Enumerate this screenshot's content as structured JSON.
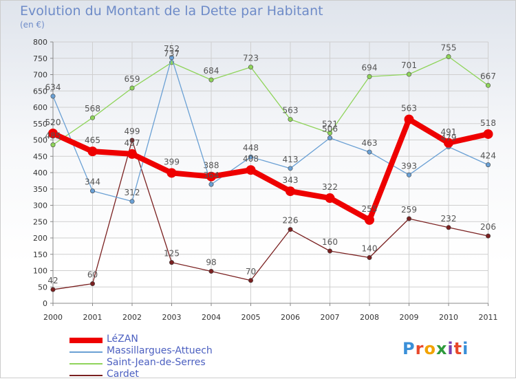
{
  "title": "Evolution du Montant de la Dette par Habitant",
  "unit": "(en €)",
  "logo": {
    "text": "Proxiti",
    "colors": [
      "#3a8fd8",
      "#e8482b",
      "#f2a200",
      "#2e9a3c",
      "#7a3fb0",
      "#e8482b",
      "#3a8fd8"
    ]
  },
  "chart_data": {
    "type": "line",
    "title": "Evolution du Montant de la Dette par Habitant",
    "ylabel": "(en €)",
    "xlabel": "",
    "categories": [
      "2000",
      "2001",
      "2002",
      "2003",
      "2004",
      "2005",
      "2006",
      "2007",
      "2008",
      "2009",
      "2010",
      "2011"
    ],
    "ylim": [
      0,
      800
    ],
    "yticks": [
      0,
      50,
      100,
      150,
      200,
      250,
      300,
      350,
      400,
      450,
      500,
      550,
      600,
      650,
      700,
      750,
      800
    ],
    "grid": true,
    "legend": "bottom-left",
    "series": [
      {
        "name": "Cardet",
        "color": "#7a2020",
        "values": [
          42,
          60,
          499,
          125,
          98,
          70,
          226,
          160,
          140,
          259,
          232,
          206
        ]
      },
      {
        "name": "Saint-Jean-de-Serres",
        "color": "#8fd45a",
        "values": [
          485,
          568,
          659,
          737,
          684,
          723,
          563,
          521,
          694,
          701,
          755,
          667
        ]
      },
      {
        "name": "Massillargues-Attuech",
        "color": "#6aa0d4",
        "values": [
          634,
          344,
          312,
          752,
          364,
          448,
          413,
          506,
          463,
          393,
          479,
          424
        ]
      },
      {
        "name": "LéZAN",
        "color": "#ee0000",
        "values": [
          520,
          465,
          457,
          399,
          388,
          408,
          343,
          322,
          255,
          563,
          491,
          518
        ]
      }
    ]
  }
}
